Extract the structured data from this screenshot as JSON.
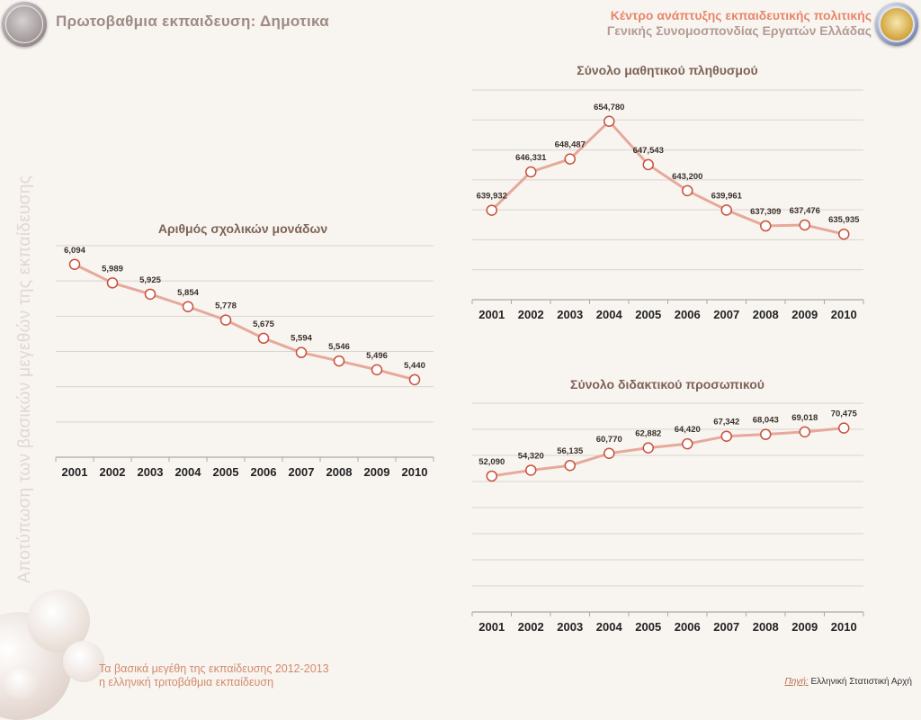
{
  "header": {
    "title": "Πρωτοβαθμια εκπαιδευση: Δημοτικα",
    "org_line1": "Κέντρο ανάπτυξης εκπαιδευτικής πολιτικής",
    "org_line2": "Γενικής Συνομοσπονδίας Εργατών Ελλάδας"
  },
  "side_title": "Αποτύπωση των βασικών μεγεθών της εκπαίδευσης",
  "footer": {
    "line1": "Τα βασικά μεγέθη της εκπαίδευσης 2012-2013",
    "line2": "η ελληνική τριτοβάθμια εκπαίδευση"
  },
  "source": {
    "label": "Πηγή:",
    "value": "Ελληνική Στατιστική Αρχή"
  },
  "colors": {
    "line": "#e6a99a",
    "marker_stroke": "#c9503a",
    "title_text": "#7d6356"
  },
  "chart_data": [
    {
      "id": "schools",
      "type": "line",
      "title": "Αριθμός σχολικών μονάδων",
      "categories": [
        "2001",
        "2002",
        "2003",
        "2004",
        "2005",
        "2006",
        "2007",
        "2008",
        "2009",
        "2010"
      ],
      "values": [
        6094,
        5989,
        5925,
        5854,
        5778,
        5675,
        5594,
        5546,
        5496,
        5440
      ],
      "labels": [
        "6,094",
        "5,989",
        "5,925",
        "5,854",
        "5,778",
        "5,675",
        "5,594",
        "5,546",
        "5,496",
        "5,440"
      ],
      "ylim": [
        5000,
        6200
      ],
      "grid_step": 200,
      "grid": true
    },
    {
      "id": "students",
      "type": "line",
      "title": "Σύνολο μαθητικού πληθυσμού",
      "categories": [
        "2001",
        "2002",
        "2003",
        "2004",
        "2005",
        "2006",
        "2007",
        "2008",
        "2009",
        "2010"
      ],
      "values": [
        639932,
        646331,
        648487,
        654780,
        647543,
        643200,
        639961,
        637309,
        637476,
        635935
      ],
      "labels": [
        "639,932",
        "646,331",
        "648,487",
        "654,780",
        "647,543",
        "643,200",
        "639,961",
        "637,309",
        "637,476",
        "635,935"
      ],
      "ylim": [
        625000,
        660000
      ],
      "grid_step": 5000,
      "grid": true
    },
    {
      "id": "teachers",
      "type": "line",
      "title": "Σύνολο διδακτικού προσωπικού",
      "categories": [
        "2001",
        "2002",
        "2003",
        "2004",
        "2005",
        "2006",
        "2007",
        "2008",
        "2009",
        "2010"
      ],
      "values": [
        52090,
        54320,
        56135,
        60770,
        62882,
        64420,
        67342,
        68043,
        69018,
        70475
      ],
      "labels": [
        "52,090",
        "54,320",
        "56,135",
        "60,770",
        "62,882",
        "64,420",
        "67,342",
        "68,043",
        "69,018",
        "70,475"
      ],
      "ylim": [
        0,
        80000
      ],
      "grid_step": 10000,
      "grid": true
    }
  ]
}
